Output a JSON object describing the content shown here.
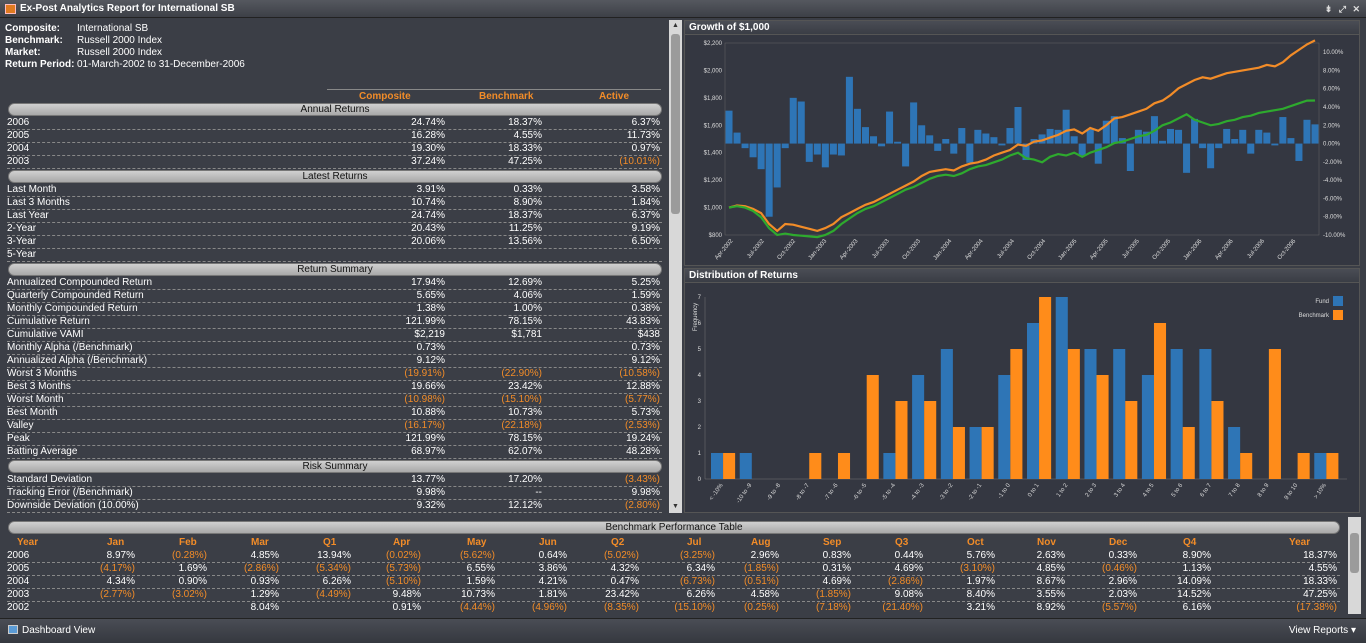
{
  "window": {
    "title": "Ex-Post Analytics Report for International SB",
    "controls": "⇟ ⤢ ✕"
  },
  "meta": [
    {
      "k": "Composite:",
      "v": "International SB"
    },
    {
      "k": "Benchmark:",
      "v": "Russell 2000 Index"
    },
    {
      "k": "Market:",
      "v": "Russell 2000 Index"
    },
    {
      "k": "Return Period:",
      "v": "01-March-2002 to 31-December-2006"
    }
  ],
  "columns": [
    "Composite",
    "Benchmark",
    "Active"
  ],
  "sections": [
    {
      "title": "Annual Returns",
      "rows": [
        [
          "2006",
          "24.74%",
          "18.37%",
          "6.37%"
        ],
        [
          "2005",
          "16.28%",
          "4.55%",
          "11.73%"
        ],
        [
          "2004",
          "19.30%",
          "18.33%",
          "0.97%"
        ],
        [
          "2003",
          "37.24%",
          "47.25%",
          "(10.01%)"
        ]
      ]
    },
    {
      "title": "Latest Returns",
      "rows": [
        [
          "Last Month",
          "3.91%",
          "0.33%",
          "3.58%"
        ],
        [
          "Last 3 Months",
          "10.74%",
          "8.90%",
          "1.84%"
        ],
        [
          "Last Year",
          "24.74%",
          "18.37%",
          "6.37%"
        ],
        [
          "2-Year",
          "20.43%",
          "11.25%",
          "9.19%"
        ],
        [
          "3-Year",
          "20.06%",
          "13.56%",
          "6.50%"
        ],
        [
          "5-Year",
          "",
          "",
          ""
        ]
      ]
    },
    {
      "title": "Return Summary",
      "rows": [
        [
          "Annualized Compounded Return",
          "17.94%",
          "12.69%",
          "5.25%"
        ],
        [
          "Quarterly Compounded Return",
          "5.65%",
          "4.06%",
          "1.59%"
        ],
        [
          "Monthly Compounded Return",
          "1.38%",
          "1.00%",
          "0.38%"
        ],
        [
          "Cumulative Return",
          "121.99%",
          "78.15%",
          "43.83%"
        ],
        [
          "Cumulative VAMI",
          "$2,219",
          "$1,781",
          "$438"
        ],
        [
          "Monthly Alpha (/Benchmark)",
          "0.73%",
          "",
          "0.73%"
        ],
        [
          "Annualized Alpha (/Benchmark)",
          "9.12%",
          "",
          "9.12%"
        ],
        [
          "Worst 3 Months",
          "(19.91%)",
          "(22.90%)",
          "(10.58%)"
        ],
        [
          "Best 3 Months",
          "19.66%",
          "23.42%",
          "12.88%"
        ],
        [
          "Worst Month",
          "(10.98%)",
          "(15.10%)",
          "(5.77%)"
        ],
        [
          "Best Month",
          "10.88%",
          "10.73%",
          "5.73%"
        ],
        [
          "Valley",
          "(16.17%)",
          "(22.18%)",
          "(2.53%)"
        ],
        [
          "Peak",
          "121.99%",
          "78.15%",
          "19.24%"
        ],
        [
          "Batting Average",
          "68.97%",
          "62.07%",
          "48.28%"
        ]
      ]
    },
    {
      "title": "Risk Summary",
      "rows": [
        [
          "Standard Deviation",
          "13.77%",
          "17.20%",
          "(3.43%)"
        ],
        [
          "Tracking Error (/Benchmark)",
          "9.98%",
          "--",
          "9.98%"
        ],
        [
          "Downside Deviation (10.00%)",
          "9.32%",
          "12.12%",
          "(2.80%)"
        ]
      ]
    }
  ],
  "growth_panel": {
    "title": "Growth of $1,000"
  },
  "distribution_panel": {
    "title": "Distribution of Returns"
  },
  "chart_data": [
    {
      "type": "line",
      "title": "Growth of $1,000",
      "x_ticks": [
        "Apr-2002",
        "Jul-2002",
        "Oct-2002",
        "Jan-2003",
        "Apr-2003",
        "Jul-2003",
        "Oct-2003",
        "Jan-2004",
        "Apr-2004",
        "Jul-2004",
        "Oct-2004",
        "Jan-2005",
        "Apr-2005",
        "Jul-2005",
        "Oct-2005",
        "Jan-2006",
        "Apr-2006",
        "Jul-2006",
        "Oct-2006"
      ],
      "y_left_ticks": [
        "$800",
        "$1,000",
        "$1,200",
        "$1,400",
        "$1,600",
        "$1,800",
        "$2,000",
        "$2,200"
      ],
      "y_left_lim": [
        800,
        2200
      ],
      "y_right_ticks": [
        "-10.00%",
        "-8.00%",
        "-6.00%",
        "-4.00%",
        "-2.00%",
        "0.00%",
        "2.00%",
        "4.00%",
        "6.00%",
        "8.00%",
        "10.00%"
      ],
      "y_right_lim": [
        -10,
        11
      ],
      "series": [
        {
          "kind": "bar",
          "color": "#2e75b6",
          "values": [
            3.6,
            1.2,
            -0.5,
            -1.5,
            -2.8,
            -8.0,
            -4.8,
            -0.5,
            5.0,
            4.6,
            -2.0,
            -1.2,
            -2.6,
            -1.2,
            -1.3,
            7.3,
            3.8,
            1.8,
            0.8,
            -0.3,
            3.5,
            0.2,
            -2.5,
            4.5,
            2.0,
            0.9,
            -0.8,
            0.5,
            -1.1,
            1.7,
            -2.1,
            1.5,
            1.1,
            0.7,
            -0.2,
            1.7,
            4.0,
            -1.8,
            0.5,
            1.0,
            1.6,
            1.5,
            3.7,
            0.8,
            -1.3,
            1.6,
            -2.2,
            2.5,
            3.0,
            0.6,
            -3.0,
            1.5,
            1.3,
            3.0,
            0.3,
            1.6,
            1.5,
            -3.2,
            2.7,
            -0.5,
            -2.7,
            -0.5,
            1.6,
            0.5,
            1.5,
            -1.1,
            1.5,
            1.2,
            -0.2,
            2.9,
            0.6,
            -1.9,
            2.6,
            2.1
          ]
        },
        {
          "name": "Composite",
          "kind": "line",
          "color": "#f28c28",
          "values": [
            1000,
            1015,
            1010,
            990,
            960,
            880,
            830,
            880,
            875,
            860,
            845,
            830,
            850,
            880,
            930,
            960,
            990,
            1020,
            1040,
            1070,
            1100,
            1130,
            1160,
            1190,
            1230,
            1260,
            1270,
            1280,
            1270,
            1300,
            1320,
            1330,
            1350,
            1380,
            1400,
            1420,
            1460,
            1450,
            1480,
            1490,
            1510,
            1530,
            1560,
            1570,
            1540,
            1580,
            1560,
            1600,
            1650,
            1660,
            1680,
            1700,
            1720,
            1760,
            1780,
            1820,
            1870,
            1900,
            1930,
            1950,
            1940,
            1960,
            1980,
            1990,
            2000,
            2010,
            2020,
            2040,
            2030,
            2060,
            2110,
            2150,
            2190,
            2219
          ]
        },
        {
          "name": "Benchmark",
          "kind": "line",
          "color": "#2eaa2e",
          "values": [
            1000,
            1010,
            1000,
            975,
            930,
            850,
            800,
            810,
            800,
            795,
            790,
            785,
            800,
            830,
            880,
            920,
            960,
            990,
            1010,
            1040,
            1070,
            1100,
            1130,
            1150,
            1180,
            1210,
            1230,
            1240,
            1230,
            1250,
            1280,
            1300,
            1310,
            1330,
            1350,
            1380,
            1400,
            1360,
            1350,
            1330,
            1370,
            1390,
            1380,
            1400,
            1370,
            1400,
            1420,
            1440,
            1470,
            1480,
            1500,
            1520,
            1530,
            1560,
            1600,
            1620,
            1650,
            1680,
            1640,
            1620,
            1600,
            1610,
            1630,
            1640,
            1660,
            1670,
            1690,
            1700,
            1710,
            1720,
            1740,
            1760,
            1780,
            1781
          ]
        }
      ]
    },
    {
      "type": "bar",
      "title": "Distribution of Returns",
      "ylabel": "Frequency",
      "ylim": [
        0,
        7
      ],
      "categories": [
        "< -10%",
        "-10 to -9",
        "-9 to -8",
        "-8 to -7",
        "-7 to -6",
        "-6 to -5",
        "-5 to -4",
        "-4 to -3",
        "-3 to -2",
        "-2 to -1",
        "-1 to 0",
        "0 to 1",
        "1 to 2",
        "2 to 3",
        "3 to 4",
        "4 to 5",
        "5 to 6",
        "6 to 7",
        "7 to 8",
        "8 to 9",
        "9 to 10",
        "> 10%"
      ],
      "legend_position": "top-right",
      "series": [
        {
          "name": "Fund",
          "color": "#2e75b6",
          "values": [
            1,
            1,
            0,
            0,
            0,
            0,
            1,
            4,
            5,
            2,
            4,
            6,
            7,
            5,
            5,
            4,
            5,
            5,
            2,
            0,
            0,
            1
          ]
        },
        {
          "name": "Benchmark",
          "color": "#ff8c1a",
          "values": [
            1,
            0,
            0,
            1,
            1,
            4,
            3,
            3,
            2,
            2,
            5,
            7,
            5,
            4,
            3,
            6,
            2,
            3,
            1,
            5,
            1,
            1
          ]
        }
      ]
    }
  ],
  "bottom": {
    "title": "Benchmark Performance Table",
    "headers": [
      "Year",
      "Jan",
      "Feb",
      "Mar",
      "Q1",
      "Apr",
      "May",
      "Jun",
      "Q2",
      "Jul",
      "Aug",
      "Sep",
      "Q3",
      "Oct",
      "Nov",
      "Dec",
      "Q4",
      "Year"
    ],
    "rows": [
      [
        "2006",
        "8.97%",
        "(0.28%)",
        "4.85%",
        "13.94%",
        "(0.02%)",
        "(5.62%)",
        "0.64%",
        "(5.02%)",
        "(3.25%)",
        "2.96%",
        "0.83%",
        "0.44%",
        "5.76%",
        "2.63%",
        "0.33%",
        "8.90%",
        "18.37%"
      ],
      [
        "2005",
        "(4.17%)",
        "1.69%",
        "(2.86%)",
        "(5.34%)",
        "(5.73%)",
        "6.55%",
        "3.86%",
        "4.32%",
        "6.34%",
        "(1.85%)",
        "0.31%",
        "4.69%",
        "(3.10%)",
        "4.85%",
        "(0.46%)",
        "1.13%",
        "4.55%"
      ],
      [
        "2004",
        "4.34%",
        "0.90%",
        "0.93%",
        "6.26%",
        "(5.10%)",
        "1.59%",
        "4.21%",
        "0.47%",
        "(6.73%)",
        "(0.51%)",
        "4.69%",
        "(2.86%)",
        "1.97%",
        "8.67%",
        "2.96%",
        "14.09%",
        "18.33%"
      ],
      [
        "2003",
        "(2.77%)",
        "(3.02%)",
        "1.29%",
        "(4.49%)",
        "9.48%",
        "10.73%",
        "1.81%",
        "23.42%",
        "6.26%",
        "4.58%",
        "(1.85%)",
        "9.08%",
        "8.40%",
        "3.55%",
        "2.03%",
        "14.52%",
        "47.25%"
      ],
      [
        "2002",
        "",
        "",
        "8.04%",
        "",
        "0.91%",
        "(4.44%)",
        "(4.96%)",
        "(8.35%)",
        "(15.10%)",
        "(0.25%)",
        "(7.18%)",
        "(21.40%)",
        "3.21%",
        "8.92%",
        "(5.57%)",
        "6.16%",
        "(17.38%)"
      ]
    ]
  },
  "status": {
    "left": "Dashboard View",
    "right": "View Reports"
  }
}
